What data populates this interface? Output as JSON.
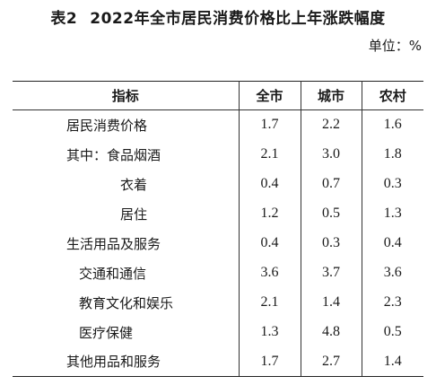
{
  "title": {
    "table_no": "表2",
    "text": "2022年全市居民消费价格比上年涨跌幅度"
  },
  "unit": "单位：%",
  "table": {
    "headers": [
      "指标",
      "全市",
      "城市",
      "农村"
    ],
    "rows": [
      {
        "label": "居民消费价格",
        "indent": 1,
        "values": [
          "1.7",
          "2.2",
          "1.6"
        ]
      },
      {
        "label": "其中：食品烟酒",
        "indent": 1,
        "values": [
          "2.1",
          "3.0",
          "1.8"
        ]
      },
      {
        "label": "衣着",
        "indent": 3,
        "values": [
          "0.4",
          "0.7",
          "0.3"
        ]
      },
      {
        "label": "居住",
        "indent": 3,
        "values": [
          "1.2",
          "0.5",
          "1.3"
        ]
      },
      {
        "label": "生活用品及服务",
        "indent": 1,
        "values": [
          "0.4",
          "0.3",
          "0.4"
        ]
      },
      {
        "label": "交通和通信",
        "indent": 2,
        "values": [
          "3.6",
          "3.7",
          "3.6"
        ]
      },
      {
        "label": "教育文化和娱乐",
        "indent": 2,
        "values": [
          "2.1",
          "1.4",
          "2.3"
        ]
      },
      {
        "label": "医疗保健",
        "indent": 2,
        "values": [
          "1.3",
          "4.8",
          "0.5"
        ]
      },
      {
        "label": "其他用品和服务",
        "indent": 1,
        "values": [
          "1.7",
          "2.7",
          "1.4"
        ]
      }
    ]
  }
}
